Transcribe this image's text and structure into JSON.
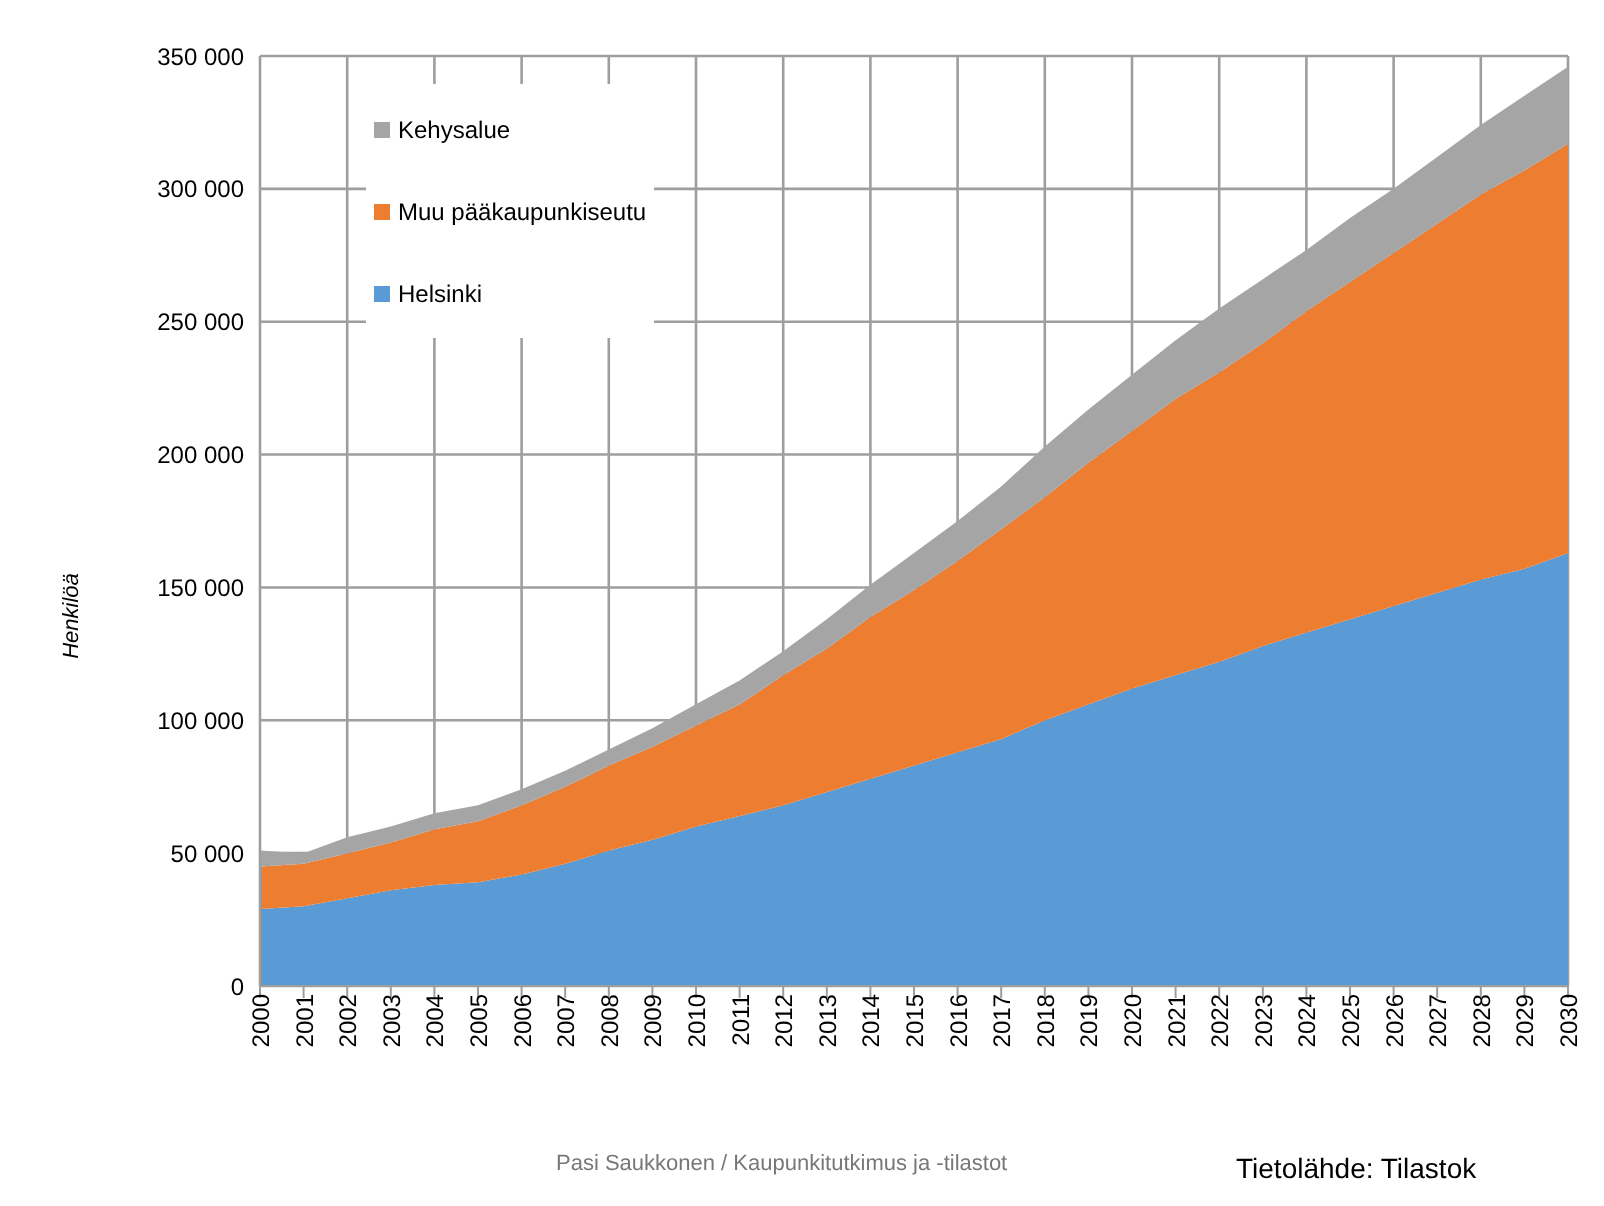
{
  "chart_data": {
    "type": "area",
    "stacked": true,
    "ylabel": "Henkilöä",
    "x": [
      2000,
      2001,
      2002,
      2003,
      2004,
      2005,
      2006,
      2007,
      2008,
      2009,
      2010,
      2011,
      2012,
      2013,
      2014,
      2015,
      2016,
      2017,
      2018,
      2019,
      2020,
      2021,
      2022,
      2023,
      2024,
      2025,
      2026,
      2027,
      2028,
      2029,
      2030
    ],
    "xlim": [
      2000,
      2030
    ],
    "xticks": [
      2000,
      2001,
      2002,
      2003,
      2004,
      2005,
      2006,
      2007,
      2008,
      2009,
      2010,
      2011,
      2012,
      2013,
      2014,
      2015,
      2016,
      2017,
      2018,
      2019,
      2020,
      2021,
      2022,
      2023,
      2024,
      2025,
      2026,
      2027,
      2028,
      2029,
      2030
    ],
    "ylim": [
      0,
      350000
    ],
    "yticks": [
      0,
      {
        "value": 50000,
        "label": "50 000"
      },
      {
        "value": 100000,
        "label": "100 000"
      },
      {
        "value": 150000,
        "label": "150 000"
      },
      {
        "value": 200000,
        "label": "200 000"
      },
      {
        "value": 250000,
        "label": "250 000"
      },
      {
        "value": 300000,
        "label": "300 000"
      },
      {
        "value": 350000,
        "label": "350 000"
      }
    ],
    "series": [
      {
        "name": "Helsinki",
        "color": "#5b9bd5",
        "values": [
          29000,
          30000,
          33000,
          36000,
          38000,
          39000,
          42000,
          46000,
          51000,
          55000,
          60000,
          64000,
          68000,
          73000,
          78000,
          83000,
          88000,
          93000,
          100000,
          106000,
          112000,
          117000,
          122000,
          128000,
          133000,
          138000,
          143000,
          148000,
          153000,
          157000,
          163000
        ]
      },
      {
        "name": "Muu pääkaupunkiseutu",
        "color": "#ed7d31",
        "values": [
          16000,
          16000,
          17000,
          18000,
          21000,
          23000,
          26000,
          29000,
          32000,
          35000,
          38000,
          42000,
          49000,
          54000,
          61000,
          66000,
          72000,
          79000,
          84000,
          91000,
          97000,
          104000,
          109000,
          114000,
          121000,
          127000,
          133000,
          139000,
          145000,
          150000,
          154000
        ]
      },
      {
        "name": "Kehysalue",
        "color": "#a5a5a5",
        "values": [
          6000,
          4000,
          6000,
          6000,
          6000,
          6000,
          6000,
          6000,
          6000,
          7000,
          8000,
          9000,
          9000,
          11000,
          12000,
          14000,
          15000,
          16000,
          19000,
          20000,
          21000,
          22000,
          24000,
          24000,
          23000,
          24000,
          24000,
          25000,
          26000,
          28000,
          29000
        ]
      }
    ],
    "grid": true,
    "legend": "top left",
    "annotations": [
      "Pasi Saukkonen / Kaupunkitutkimus ja -tilastot",
      "Tietolähde: Tilastok"
    ]
  }
}
